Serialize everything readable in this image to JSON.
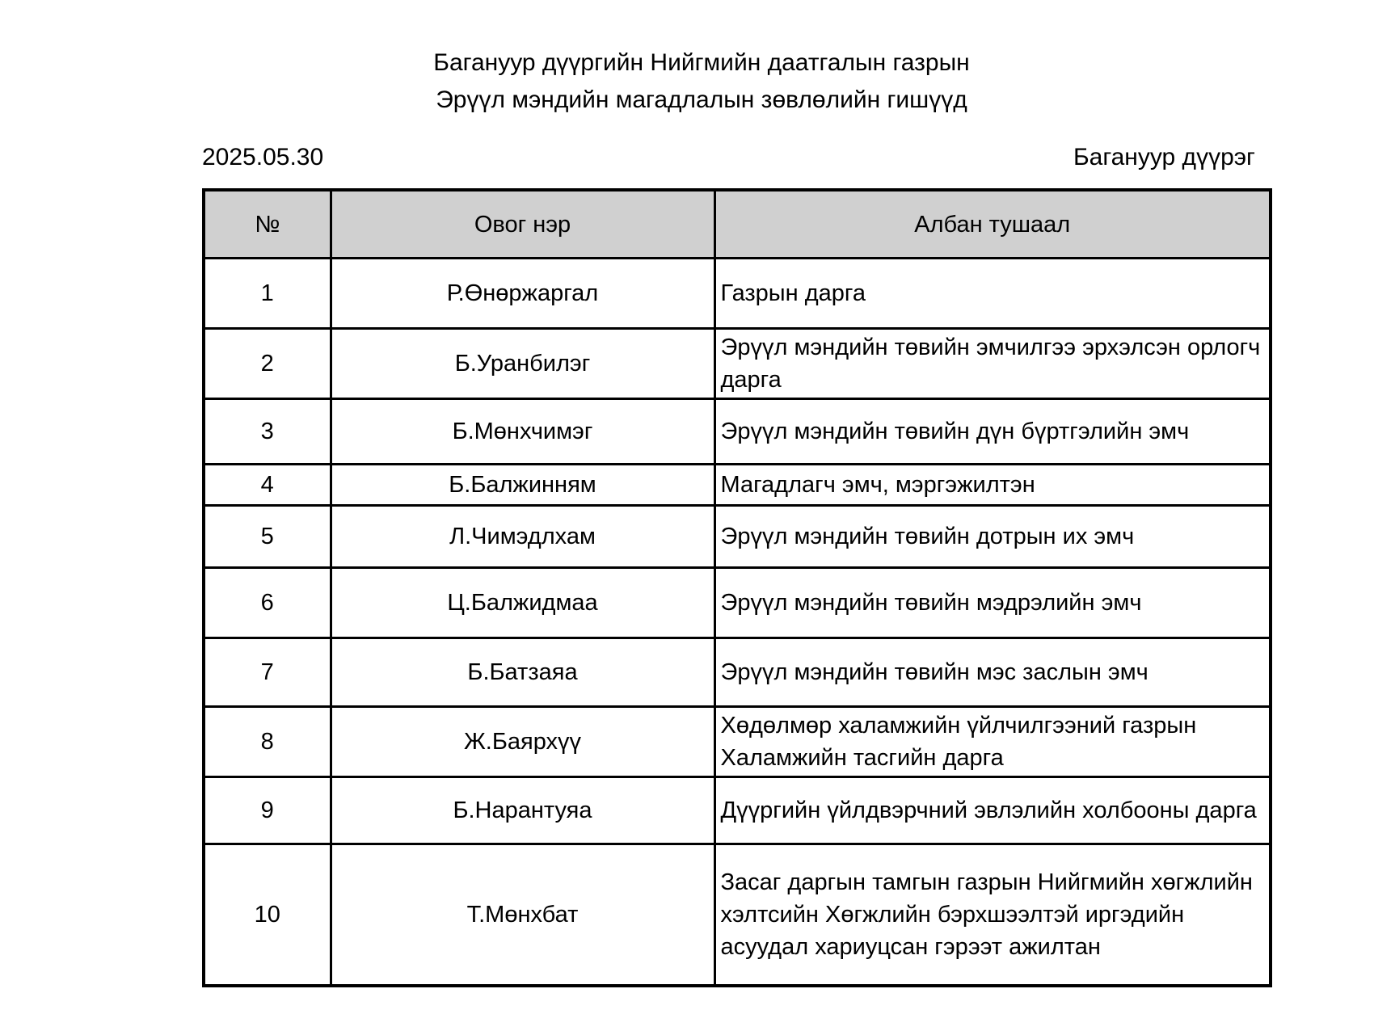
{
  "document": {
    "title_line1": "Багануур дүүргийн Нийгмийн даатгалын газрын",
    "title_line2": "Эрүүл мэндийн магадлалын зөвлөлийн гишүүд",
    "date": "2025.05.30",
    "location": "Багануур дүүрэг"
  },
  "table": {
    "headers": [
      "№",
      "Овог нэр",
      "Албан тушаал"
    ],
    "header_bg": "#d0d0d0",
    "border_color": "#000000",
    "rows": [
      {
        "no": "1",
        "name": "Р.Өнөржаргал",
        "position": "Газрын дарга"
      },
      {
        "no": "2",
        "name": "Б.Уранбилэг",
        "position": "Эрүүл мэндийн төвийн эмчилгээ эрхэлсэн орлогч дарга"
      },
      {
        "no": "3",
        "name": "Б.Мөнхчимэг",
        "position": "Эрүүл мэндийн төвийн дүн бүртгэлийн эмч"
      },
      {
        "no": "4",
        "name": "Б.Балжинням",
        "position": "Магадлагч эмч, мэргэжилтэн"
      },
      {
        "no": "5",
        "name": "Л.Чимэдлхам",
        "position": "Эрүүл мэндийн төвийн дотрын их эмч"
      },
      {
        "no": "6",
        "name": "Ц.Балжидмаа",
        "position": "Эрүүл мэндийн төвийн мэдрэлийн эмч"
      },
      {
        "no": "7",
        "name": "Б.Батзаяа",
        "position": "Эрүүл мэндийн төвийн мэс заслын эмч"
      },
      {
        "no": "8",
        "name": "Ж.Баярхүү",
        "position": "Хөдөлмөр халамжийн үйлчилгээний газрын Халамжийн тасгийн дарга"
      },
      {
        "no": "9",
        "name": "Б.Нарантуяа",
        "position": "Дүүргийн үйлдвэрчний эвлэлийн холбооны дарга"
      },
      {
        "no": "10",
        "name": "Т.Мөнхбат",
        "position": "Засаг даргын тамгын газрын Нийгмийн хөгжлийн хэлтсийн Хөгжлийн бэрхшээлтэй иргэдийн асуудал хариуцсан гэрээт ажилтан"
      }
    ]
  }
}
